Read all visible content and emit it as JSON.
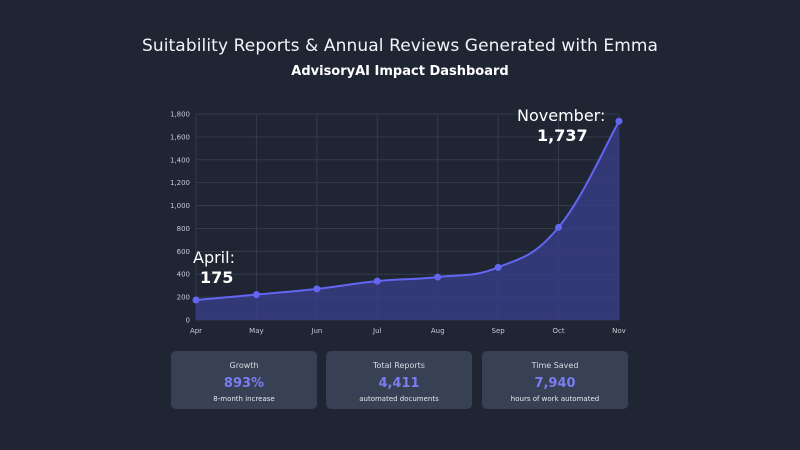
{
  "header": {
    "title": "Suitability Reports & Annual Reviews Generated with Emma",
    "subtitle": "AdvisoryAI Impact Dashboard"
  },
  "annotations": {
    "april": {
      "label": "April:",
      "value": "175"
    },
    "november": {
      "label": "November:",
      "value": "1,737"
    }
  },
  "cards": [
    {
      "label": "Growth",
      "value": "893%",
      "desc": "8-month increase"
    },
    {
      "label": "Total Reports",
      "value": "4,411",
      "desc": "automated documents"
    },
    {
      "label": "Time Saved",
      "value": "7,940",
      "desc": "hours of work automated"
    }
  ],
  "colors": {
    "background": "#1f2533",
    "line": "#6366f1",
    "area": "#3b3f8f",
    "card": "#384154",
    "accent": "#7b7cf0",
    "grid": "#323a4b"
  },
  "chart_data": {
    "type": "area",
    "categories": [
      "Apr",
      "May",
      "Jun",
      "Jul",
      "Aug",
      "Sep",
      "Oct",
      "Nov"
    ],
    "values": [
      175,
      222,
      272,
      340,
      375,
      460,
      810,
      1737
    ],
    "title": "",
    "xlabel": "",
    "ylabel": "",
    "ylim": [
      0,
      1800
    ],
    "yticks": [
      0,
      200,
      400,
      600,
      800,
      1000,
      1200,
      1400,
      1600,
      1800
    ],
    "ytick_labels": [
      "0",
      "200",
      "400",
      "600",
      "800",
      "1,000",
      "1,200",
      "1,400",
      "1,600",
      "1,800"
    ],
    "grid": true,
    "legend": "none"
  }
}
